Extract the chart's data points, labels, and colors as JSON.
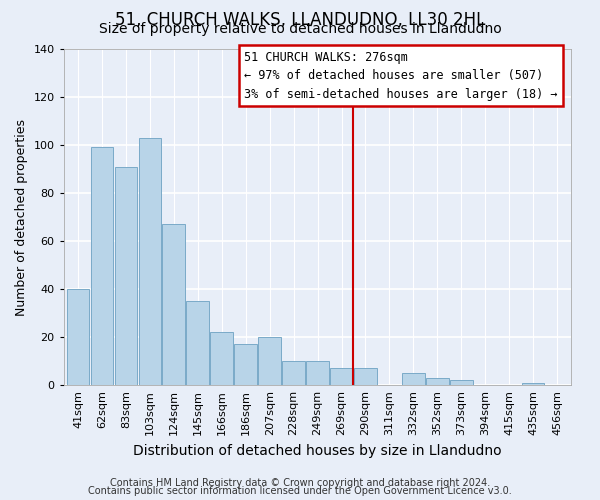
{
  "title": "51, CHURCH WALKS, LLANDUDNO, LL30 2HL",
  "subtitle": "Size of property relative to detached houses in Llandudno",
  "xlabel": "Distribution of detached houses by size in Llandudno",
  "ylabel": "Number of detached properties",
  "bar_labels": [
    "41sqm",
    "62sqm",
    "83sqm",
    "103sqm",
    "124sqm",
    "145sqm",
    "166sqm",
    "186sqm",
    "207sqm",
    "228sqm",
    "249sqm",
    "269sqm",
    "290sqm",
    "311sqm",
    "332sqm",
    "352sqm",
    "373sqm",
    "394sqm",
    "415sqm",
    "435sqm",
    "456sqm"
  ],
  "bar_values": [
    40,
    99,
    91,
    103,
    67,
    35,
    22,
    17,
    20,
    10,
    10,
    7,
    7,
    0,
    5,
    3,
    2,
    0,
    0,
    1,
    0
  ],
  "bar_color": "#b8d4e8",
  "bar_edge_color": "#7aaac8",
  "vline_color": "#cc0000",
  "ylim": [
    0,
    140
  ],
  "yticks": [
    0,
    20,
    40,
    60,
    80,
    100,
    120,
    140
  ],
  "annotation_title": "51 CHURCH WALKS: 276sqm",
  "annotation_line1": "← 97% of detached houses are smaller (507)",
  "annotation_line2": "3% of semi-detached houses are larger (18) →",
  "footer_line1": "Contains HM Land Registry data © Crown copyright and database right 2024.",
  "footer_line2": "Contains public sector information licensed under the Open Government Licence v3.0.",
  "plot_bg_color": "#e8eef8",
  "fig_bg_color": "#e8eef8",
  "grid_color": "#ffffff",
  "title_fontsize": 12,
  "subtitle_fontsize": 10,
  "xlabel_fontsize": 10,
  "ylabel_fontsize": 9,
  "tick_fontsize": 8,
  "annot_fontsize": 8.5,
  "footer_fontsize": 7
}
